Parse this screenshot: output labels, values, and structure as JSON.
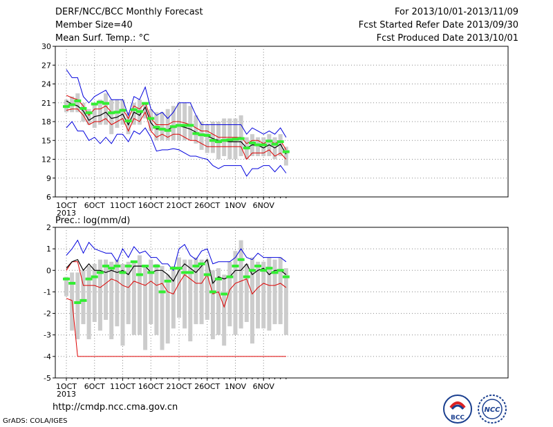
{
  "header": {
    "title": "DERF/NCC/BCC Monthly Forecast",
    "member_size": "Member Size=40",
    "variable": "Mean Surf. Temp.: °C",
    "period": "For 2013/10/01-2013/11/09",
    "started": "Fcst Started Refer Date 2013/09/30",
    "produced": "Fcst Produced Date 2013/10/01"
  },
  "footer": {
    "url": "http://cmdp.ncc.cma.gov.cn",
    "credit": "GrADS: COLA/IGES"
  },
  "logos": {
    "bcc_text": "BCC",
    "ncc_text": "NCC"
  },
  "colors": {
    "ensemble_mean": "#000000",
    "upper_envelope": "#0000dd",
    "lower_envelope": "#dd0000",
    "box": "#cccccc",
    "median": "#33ee33"
  },
  "chart_data": [
    {
      "type": "line",
      "name": "Mean Surf. Temp.",
      "ylabel": "Mean Surf. Temp.: °C",
      "ylim": [
        6,
        30
      ],
      "yticks": [
        6,
        9,
        12,
        15,
        18,
        21,
        24,
        27,
        30
      ],
      "xticks": [
        "1OCT",
        "6OCT",
        "11OCT",
        "16OCT",
        "21OCT",
        "26OCT",
        "1NOV",
        "6NOV"
      ],
      "xsub": "2013",
      "x_days": 40,
      "grid": true,
      "series": [
        {
          "role": "max",
          "values": [
            26.3,
            25.0,
            25.0,
            22.0,
            21.0,
            22.0,
            22.5,
            23.0,
            21.5,
            21.5,
            21.5,
            19.0,
            22.0,
            21.5,
            23.5,
            20.0,
            19.0,
            19.5,
            18.5,
            19.5,
            21.0,
            21.0,
            21.0,
            19.0,
            17.5,
            17.5,
            17.5,
            17.5,
            17.5,
            17.5,
            17.5,
            17.5,
            16.0,
            17.0,
            16.5,
            16.0,
            16.5,
            16.0,
            17.0,
            15.5
          ]
        },
        {
          "role": "p90",
          "values": [
            22.2,
            21.8,
            21.5,
            20.5,
            19.0,
            20.0,
            20.0,
            20.5,
            19.5,
            19.5,
            20.0,
            18.5,
            20.5,
            20.0,
            21.0,
            18.5,
            17.5,
            17.5,
            17.5,
            18.0,
            18.0,
            17.8,
            17.5,
            17.0,
            16.5,
            16.5,
            16.0,
            15.5,
            15.5,
            15.5,
            15.5,
            15.5,
            14.5,
            15.0,
            15.0,
            14.5,
            15.0,
            14.5,
            15.0,
            13.5
          ]
        },
        {
          "role": "mean",
          "values": [
            21.3,
            20.8,
            20.5,
            19.7,
            18.2,
            18.8,
            19.0,
            19.5,
            18.5,
            18.7,
            19.2,
            17.5,
            19.5,
            19.0,
            20.3,
            17.8,
            16.8,
            16.9,
            16.7,
            17.2,
            17.3,
            17.1,
            16.8,
            16.3,
            15.8,
            15.7,
            15.3,
            15.0,
            14.9,
            14.8,
            14.8,
            14.8,
            13.8,
            14.3,
            14.2,
            13.8,
            14.3,
            13.8,
            14.4,
            12.8
          ]
        },
        {
          "role": "p10",
          "values": [
            19.8,
            20.0,
            20.0,
            19.0,
            17.5,
            18.0,
            18.0,
            18.5,
            17.5,
            18.0,
            18.5,
            16.5,
            18.5,
            18.0,
            19.5,
            16.5,
            15.5,
            16.0,
            15.5,
            16.0,
            16.0,
            15.5,
            15.0,
            15.0,
            14.5,
            14.0,
            14.0,
            14.0,
            14.0,
            14.0,
            14.0,
            14.0,
            12.0,
            13.0,
            13.0,
            13.0,
            13.5,
            12.5,
            13.0,
            12.0
          ]
        },
        {
          "role": "min",
          "values": [
            17.0,
            18.0,
            16.5,
            16.5,
            15.0,
            15.5,
            14.5,
            15.5,
            14.5,
            16.0,
            16.0,
            14.8,
            16.5,
            16.0,
            17.0,
            15.5,
            13.3,
            13.5,
            13.5,
            13.7,
            13.5,
            13.0,
            12.5,
            12.5,
            12.2,
            12.0,
            11.0,
            10.5,
            11.0,
            11.0,
            11.0,
            11.0,
            9.3,
            10.5,
            10.5,
            11.0,
            11.0,
            10.0,
            11.0,
            9.8
          ]
        },
        {
          "role": "box_low",
          "values": [
            19.5,
            19.5,
            19.5,
            18.0,
            17.5,
            17.0,
            17.5,
            17.5,
            16.0,
            17.0,
            17.5,
            16.0,
            17.5,
            17.5,
            18.5,
            16.5,
            15.0,
            15.0,
            15.0,
            15.0,
            15.0,
            15.0,
            15.0,
            14.5,
            13.5,
            13.0,
            13.0,
            12.0,
            12.5,
            12.0,
            12.0,
            12.5,
            12.0,
            12.5,
            12.5,
            12.5,
            12.5,
            12.0,
            12.5,
            11.0
          ]
        },
        {
          "role": "box_high",
          "values": [
            21.5,
            22.0,
            22.5,
            21.0,
            20.0,
            21.0,
            21.5,
            22.5,
            21.5,
            21.5,
            21.5,
            19.5,
            21.0,
            21.5,
            21.0,
            20.0,
            19.5,
            19.5,
            20.0,
            20.5,
            21.0,
            21.0,
            20.5,
            19.0,
            18.0,
            17.5,
            18.0,
            18.0,
            18.5,
            18.5,
            18.5,
            19.0,
            15.5,
            16.0,
            15.5,
            15.5,
            16.0,
            15.5,
            16.0,
            14.0
          ]
        },
        {
          "role": "median",
          "values": [
            20.4,
            20.7,
            21.3,
            20.1,
            19.4,
            20.8,
            21.1,
            20.9,
            19.4,
            19.5,
            19.8,
            18.1,
            19.9,
            19.6,
            20.9,
            18.5,
            17.1,
            16.8,
            16.6,
            17.2,
            17.4,
            17.4,
            17.4,
            16.1,
            15.9,
            15.8,
            15.0,
            14.8,
            15.0,
            15.1,
            15.2,
            15.3,
            13.8,
            14.6,
            14.3,
            14.3,
            14.9,
            14.4,
            14.8,
            13.2
          ]
        }
      ]
    },
    {
      "type": "line",
      "name": "Prec.",
      "ylabel": "Prec.: log(mm/d)",
      "ylim": [
        -5,
        2
      ],
      "yticks": [
        -5,
        -4,
        -3,
        -2,
        -1,
        0,
        1,
        2
      ],
      "xticks": [
        "1OCT",
        "6OCT",
        "11OCT",
        "16OCT",
        "21OCT",
        "26OCT",
        "1NOV",
        "6NOV"
      ],
      "xsub": "2013",
      "x_days": 40,
      "grid": true,
      "series": [
        {
          "role": "max",
          "values": [
            0.7,
            1.0,
            1.4,
            0.8,
            1.3,
            1.0,
            0.9,
            0.8,
            0.8,
            0.4,
            1.0,
            0.6,
            1.1,
            0.8,
            0.9,
            0.6,
            0.6,
            0.3,
            0.3,
            0.0,
            1.0,
            1.2,
            0.7,
            0.5,
            0.9,
            1.0,
            0.3,
            0.4,
            0.4,
            0.4,
            0.6,
            1.0,
            0.6,
            0.5,
            0.8,
            0.6,
            0.6,
            0.6,
            0.6,
            0.4
          ]
        },
        {
          "role": "mean",
          "values": [
            0.1,
            0.4,
            0.5,
            0.0,
            0.3,
            0.0,
            0.0,
            -0.1,
            0.0,
            -0.1,
            0.0,
            -0.2,
            0.2,
            0.2,
            0.2,
            -0.1,
            0.0,
            0.0,
            -0.2,
            -0.5,
            0.0,
            0.3,
            0.1,
            -0.1,
            0.2,
            0.5,
            -0.6,
            -0.3,
            -0.4,
            -0.3,
            0.0,
            0.0,
            0.3,
            -0.2,
            0.0,
            0.1,
            -0.2,
            0.0,
            0.0,
            -0.2
          ]
        },
        {
          "role": "min",
          "values": [
            -1.3,
            -1.4,
            -4.0,
            -4.0,
            -4.0,
            -4.0,
            -4.0,
            -4.0,
            -4.0,
            -4.0,
            -4.0,
            -4.0,
            -4.0,
            -4.0,
            -4.0,
            -4.0,
            -4.0,
            -4.0,
            -4.0,
            -4.0,
            -4.0,
            -4.0,
            -4.0,
            -4.0,
            -4.0,
            -4.0,
            -4.0,
            -4.0,
            -4.0,
            -4.0,
            -4.0,
            -4.0,
            -4.0,
            -4.0,
            -4.0,
            -4.0,
            -4.0,
            -4.0,
            -4.0,
            -4.0
          ]
        },
        {
          "role": "p10",
          "values": [
            0.0,
            0.4,
            0.4,
            -0.7,
            -0.7,
            -0.7,
            -0.8,
            -0.6,
            -0.4,
            -0.5,
            -0.7,
            -0.8,
            -0.5,
            -0.6,
            -0.7,
            -0.5,
            -0.7,
            -0.6,
            -1.0,
            -1.1,
            -0.6,
            -0.2,
            -0.4,
            -0.6,
            -0.6,
            -0.2,
            -1.1,
            -1.0,
            -1.7,
            -0.9,
            -0.6,
            -0.5,
            -0.4,
            -1.1,
            -0.8,
            -0.6,
            -0.7,
            -0.7,
            -0.6,
            -0.8
          ]
        },
        {
          "role": "box_low",
          "values": [
            -1.2,
            -2.8,
            -3.2,
            -2.5,
            -3.2,
            -2.4,
            -2.8,
            -2.3,
            -3.2,
            -2.6,
            -3.5,
            -2.5,
            -3.0,
            -3.0,
            -3.7,
            -2.5,
            -3.0,
            -3.7,
            -3.4,
            -2.7,
            -2.2,
            -2.7,
            -3.3,
            -2.5,
            -2.5,
            -2.3,
            -3.2,
            -3.0,
            -3.5,
            -2.6,
            -3.0,
            -2.7,
            -2.4,
            -3.4,
            -2.7,
            -2.7,
            -2.8,
            -2.5,
            -2.5,
            -3.0
          ]
        },
        {
          "role": "box_high",
          "values": [
            -0.3,
            -0.1,
            -0.1,
            0.0,
            0.2,
            0.3,
            0.5,
            0.5,
            0.4,
            0.5,
            0.3,
            0.4,
            0.4,
            0.7,
            0.2,
            0.5,
            0.3,
            0.2,
            -0.2,
            0.2,
            0.6,
            0.5,
            0.5,
            0.6,
            0.5,
            0.5,
            0.0,
            0.1,
            -0.2,
            0.4,
            0.9,
            1.4,
            0.3,
            0.6,
            0.4,
            0.4,
            0.6,
            0.5,
            0.6,
            0.1
          ]
        },
        {
          "role": "median",
          "values": [
            -0.4,
            -0.6,
            -1.5,
            -1.4,
            -0.4,
            -0.3,
            -0.1,
            0.2,
            0.1,
            0.2,
            -0.1,
            0.2,
            0.4,
            -0.2,
            0.2,
            -0.1,
            0.2,
            -1.0,
            -0.5,
            0.1,
            0.1,
            -0.1,
            -0.1,
            0.2,
            0.3,
            -0.2,
            -1.0,
            -0.4,
            -1.1,
            -0.3,
            0.2,
            0.5,
            -0.3,
            0.0,
            0.2,
            0.0,
            0.1,
            -0.1,
            0.0,
            -0.3
          ]
        }
      ]
    }
  ]
}
